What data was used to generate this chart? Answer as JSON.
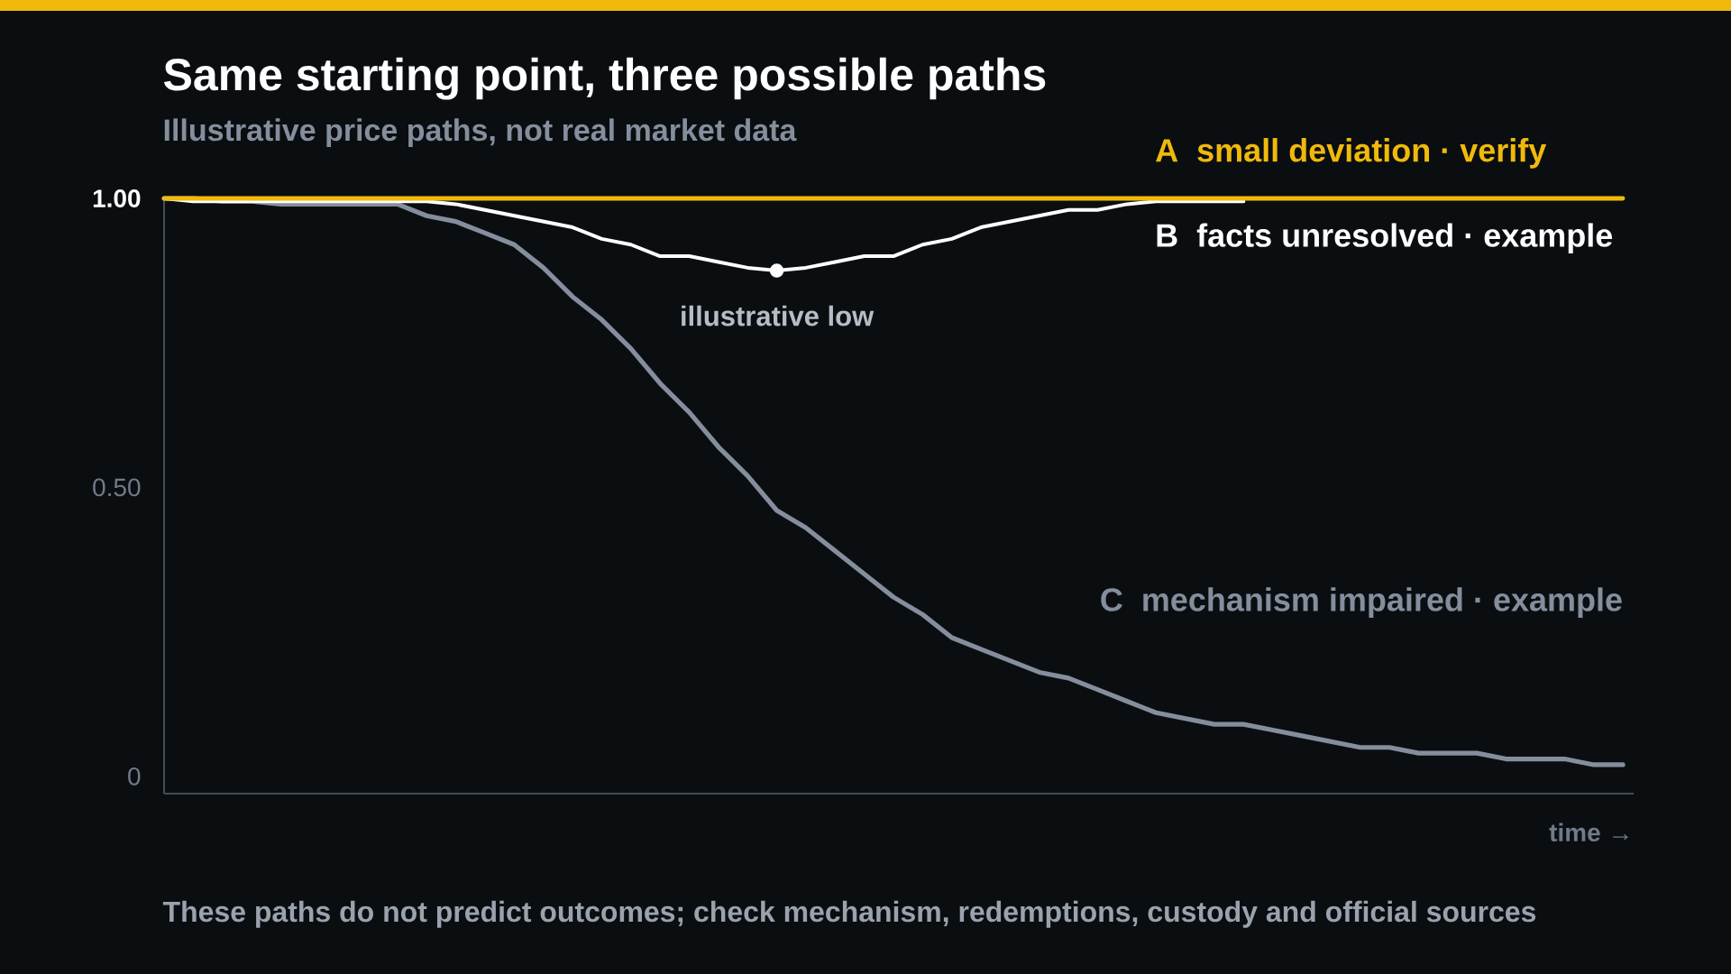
{
  "chart_data": {
    "type": "line",
    "title": "Same starting point, three possible paths",
    "subtitle": "Illustrative price paths, not real market data",
    "xlabel": "time →",
    "annotations": [
      {
        "text": "illustrative low",
        "y": 0.875
      },
      "These paths do not predict outcomes; check mechanism, redemptions, custody and official sources"
    ],
    "categories": [
      null,
      null,
      null,
      null,
      null,
      null,
      null,
      null,
      null,
      null,
      null,
      null,
      null,
      null,
      null,
      null,
      null,
      null,
      null,
      null,
      null,
      null,
      null,
      null,
      null,
      null,
      null,
      null,
      null,
      null,
      null,
      null,
      null,
      null,
      null,
      null,
      null,
      null,
      null,
      null,
      null,
      null,
      null,
      null,
      null,
      null,
      null,
      null,
      null,
      null,
      null
    ],
    "series": [
      {
        "name": "A  small deviation · verify",
        "color": "#f0b90b",
        "values": [
          1.0,
          1.0,
          1.0,
          1.0,
          1.0,
          1.0,
          1.0,
          1.0,
          1.0,
          1.0,
          1.0,
          1.0,
          1.0,
          1.0,
          1.0,
          1.0,
          1.0,
          1.0,
          1.0,
          1.0,
          1.0,
          1.0,
          1.0,
          1.0,
          1.0,
          1.0,
          1.0,
          1.0,
          1.0,
          1.0,
          1.0,
          1.0,
          1.0,
          1.0,
          1.0,
          1.0,
          1.0,
          1.0,
          1.0,
          1.0,
          1.0,
          1.0,
          1.0,
          1.0,
          1.0,
          1.0,
          1.0,
          1.0,
          1.0,
          1.0,
          1.0
        ]
      },
      {
        "name": "B  facts unresolved · example",
        "color": "#ffffff",
        "values": [
          1.0,
          0.995,
          0.995,
          0.995,
          0.995,
          0.995,
          0.995,
          0.995,
          0.995,
          0.995,
          0.99,
          0.98,
          0.97,
          0.96,
          0.95,
          0.93,
          0.92,
          0.9,
          0.9,
          0.89,
          0.88,
          0.875,
          0.88,
          0.89,
          0.9,
          0.9,
          0.92,
          0.93,
          0.95,
          0.96,
          0.97,
          0.98,
          0.98,
          0.99,
          0.995,
          0.995,
          0.995,
          0.995,
          null,
          null,
          null,
          null,
          null,
          null,
          null,
          null,
          null,
          null,
          null,
          null,
          null
        ]
      },
      {
        "name": "C  mechanism impaired · example",
        "color": "#848e9c",
        "values": [
          1.0,
          1.0,
          0.995,
          0.995,
          0.99,
          0.99,
          0.99,
          0.99,
          0.99,
          0.97,
          0.96,
          0.94,
          0.92,
          0.88,
          0.83,
          0.79,
          0.74,
          0.68,
          0.63,
          0.57,
          0.52,
          0.46,
          0.43,
          0.39,
          0.35,
          0.31,
          0.28,
          0.24,
          0.22,
          0.2,
          0.18,
          0.17,
          0.15,
          0.13,
          0.11,
          0.1,
          0.09,
          0.09,
          0.08,
          0.07,
          0.06,
          0.05,
          0.05,
          0.04,
          0.04,
          0.04,
          0.03,
          0.03,
          0.03,
          0.02,
          0.02
        ]
      }
    ],
    "ylim": [
      -0.03,
      1.0
    ],
    "yticks": [
      0,
      {
        "value": 0.5,
        "label": "0.50"
      },
      {
        "value": 1.0,
        "label": "1.00"
      }
    ]
  }
}
